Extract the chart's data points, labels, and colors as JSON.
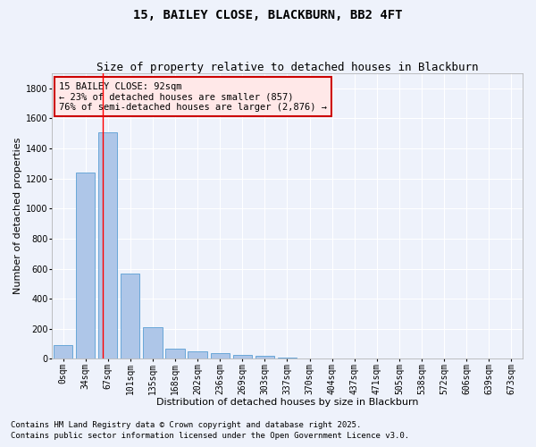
{
  "title": "15, BAILEY CLOSE, BLACKBURN, BB2 4FT",
  "subtitle": "Size of property relative to detached houses in Blackburn",
  "xlabel": "Distribution of detached houses by size in Blackburn",
  "ylabel": "Number of detached properties",
  "bar_color": "#aec6e8",
  "bar_edge_color": "#5a9fd4",
  "categories": [
    "0sqm",
    "34sqm",
    "67sqm",
    "101sqm",
    "135sqm",
    "168sqm",
    "202sqm",
    "236sqm",
    "269sqm",
    "303sqm",
    "337sqm",
    "370sqm",
    "404sqm",
    "437sqm",
    "471sqm",
    "505sqm",
    "538sqm",
    "572sqm",
    "606sqm",
    "639sqm",
    "673sqm"
  ],
  "values": [
    90,
    1240,
    1510,
    565,
    210,
    70,
    50,
    38,
    28,
    20,
    8,
    3,
    1,
    0,
    0,
    0,
    0,
    0,
    0,
    0,
    0
  ],
  "ylim": [
    0,
    1900
  ],
  "yticks": [
    0,
    200,
    400,
    600,
    800,
    1000,
    1200,
    1400,
    1600,
    1800
  ],
  "property_line_x": 1.77,
  "annotation_text": "15 BAILEY CLOSE: 92sqm\n← 23% of detached houses are smaller (857)\n76% of semi-detached houses are larger (2,876) →",
  "annotation_box_facecolor": "#ffe8e8",
  "annotation_box_edge": "#cc0000",
  "footer_line1": "Contains HM Land Registry data © Crown copyright and database right 2025.",
  "footer_line2": "Contains public sector information licensed under the Open Government Licence v3.0.",
  "bg_color": "#eef2fb",
  "grid_color": "#ffffff",
  "title_fontsize": 10,
  "subtitle_fontsize": 9,
  "axis_label_fontsize": 8,
  "tick_fontsize": 7,
  "annotation_fontsize": 7.5,
  "footer_fontsize": 6.5
}
